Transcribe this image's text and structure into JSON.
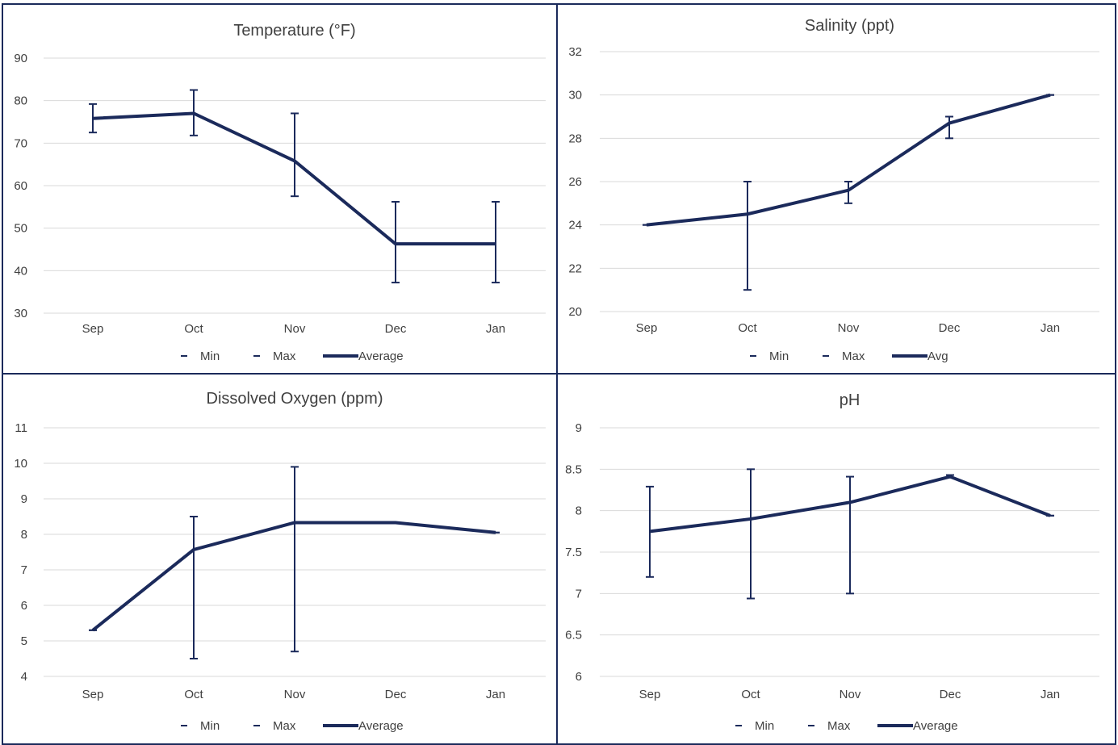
{
  "colors": {
    "series": "#1b2a5b",
    "grid": "#d9d9d9",
    "text": "#404040",
    "border": "#1b2a5b"
  },
  "chart_data": [
    {
      "type": "line",
      "title": "Temperature (°F)",
      "categories": [
        "Sep",
        "Oct",
        "Nov",
        "Dec",
        "Jan"
      ],
      "ylim": [
        30,
        90
      ],
      "yticks": [
        30,
        40,
        50,
        60,
        70,
        80,
        90
      ],
      "grid": true,
      "legend": [
        "Min",
        "Max",
        "Average"
      ],
      "legend_position": "bottom",
      "series": [
        {
          "name": "Min",
          "values": [
            72.5,
            71.8,
            57.5,
            37.2,
            37.2
          ]
        },
        {
          "name": "Max",
          "values": [
            79.2,
            82.5,
            77.0,
            56.2,
            56.2
          ]
        },
        {
          "name": "Average",
          "values": [
            75.8,
            77.0,
            65.8,
            46.3,
            46.3
          ]
        }
      ]
    },
    {
      "type": "line",
      "title": "Salinity (ppt)",
      "categories": [
        "Sep",
        "Oct",
        "Nov",
        "Dec",
        "Jan"
      ],
      "ylim": [
        20,
        32
      ],
      "yticks": [
        20,
        22,
        24,
        26,
        28,
        30,
        32
      ],
      "grid": true,
      "legend": [
        "Min",
        "Max",
        "Avg"
      ],
      "legend_position": "bottom",
      "series": [
        {
          "name": "Min",
          "values": [
            24.0,
            21.0,
            25.0,
            28.0,
            30.0
          ]
        },
        {
          "name": "Max",
          "values": [
            24.0,
            26.0,
            26.0,
            29.0,
            30.0
          ]
        },
        {
          "name": "Avg",
          "values": [
            24.0,
            24.5,
            25.6,
            28.7,
            30.0
          ]
        }
      ]
    },
    {
      "type": "line",
      "title": "Dissolved Oxygen (ppm)",
      "categories": [
        "Sep",
        "Oct",
        "Nov",
        "Dec",
        "Jan"
      ],
      "ylim": [
        4,
        11
      ],
      "yticks": [
        4,
        5,
        6,
        7,
        8,
        9,
        10,
        11
      ],
      "grid": true,
      "legend": [
        "Min",
        "Max",
        "Average"
      ],
      "legend_position": "bottom",
      "series": [
        {
          "name": "Min",
          "values": [
            5.3,
            4.5,
            4.7,
            8.33,
            8.05
          ]
        },
        {
          "name": "Max",
          "values": [
            5.3,
            8.5,
            9.9,
            8.33,
            8.05
          ]
        },
        {
          "name": "Average",
          "values": [
            5.3,
            7.57,
            8.33,
            8.33,
            8.05
          ]
        }
      ]
    },
    {
      "type": "line",
      "title": "pH",
      "categories": [
        "Sep",
        "Oct",
        "Nov",
        "Dec",
        "Jan"
      ],
      "ylim": [
        6,
        9
      ],
      "yticks": [
        6,
        6.5,
        7,
        7.5,
        8,
        8.5,
        9
      ],
      "grid": true,
      "legend": [
        "Min",
        "Max",
        "Average"
      ],
      "legend_position": "bottom",
      "series": [
        {
          "name": "Min",
          "values": [
            7.2,
            6.94,
            7.0,
            8.4,
            7.94
          ]
        },
        {
          "name": "Max",
          "values": [
            8.29,
            8.5,
            8.41,
            8.43,
            7.94
          ]
        },
        {
          "name": "Average",
          "values": [
            7.75,
            7.9,
            8.1,
            8.41,
            7.94
          ]
        }
      ]
    }
  ]
}
